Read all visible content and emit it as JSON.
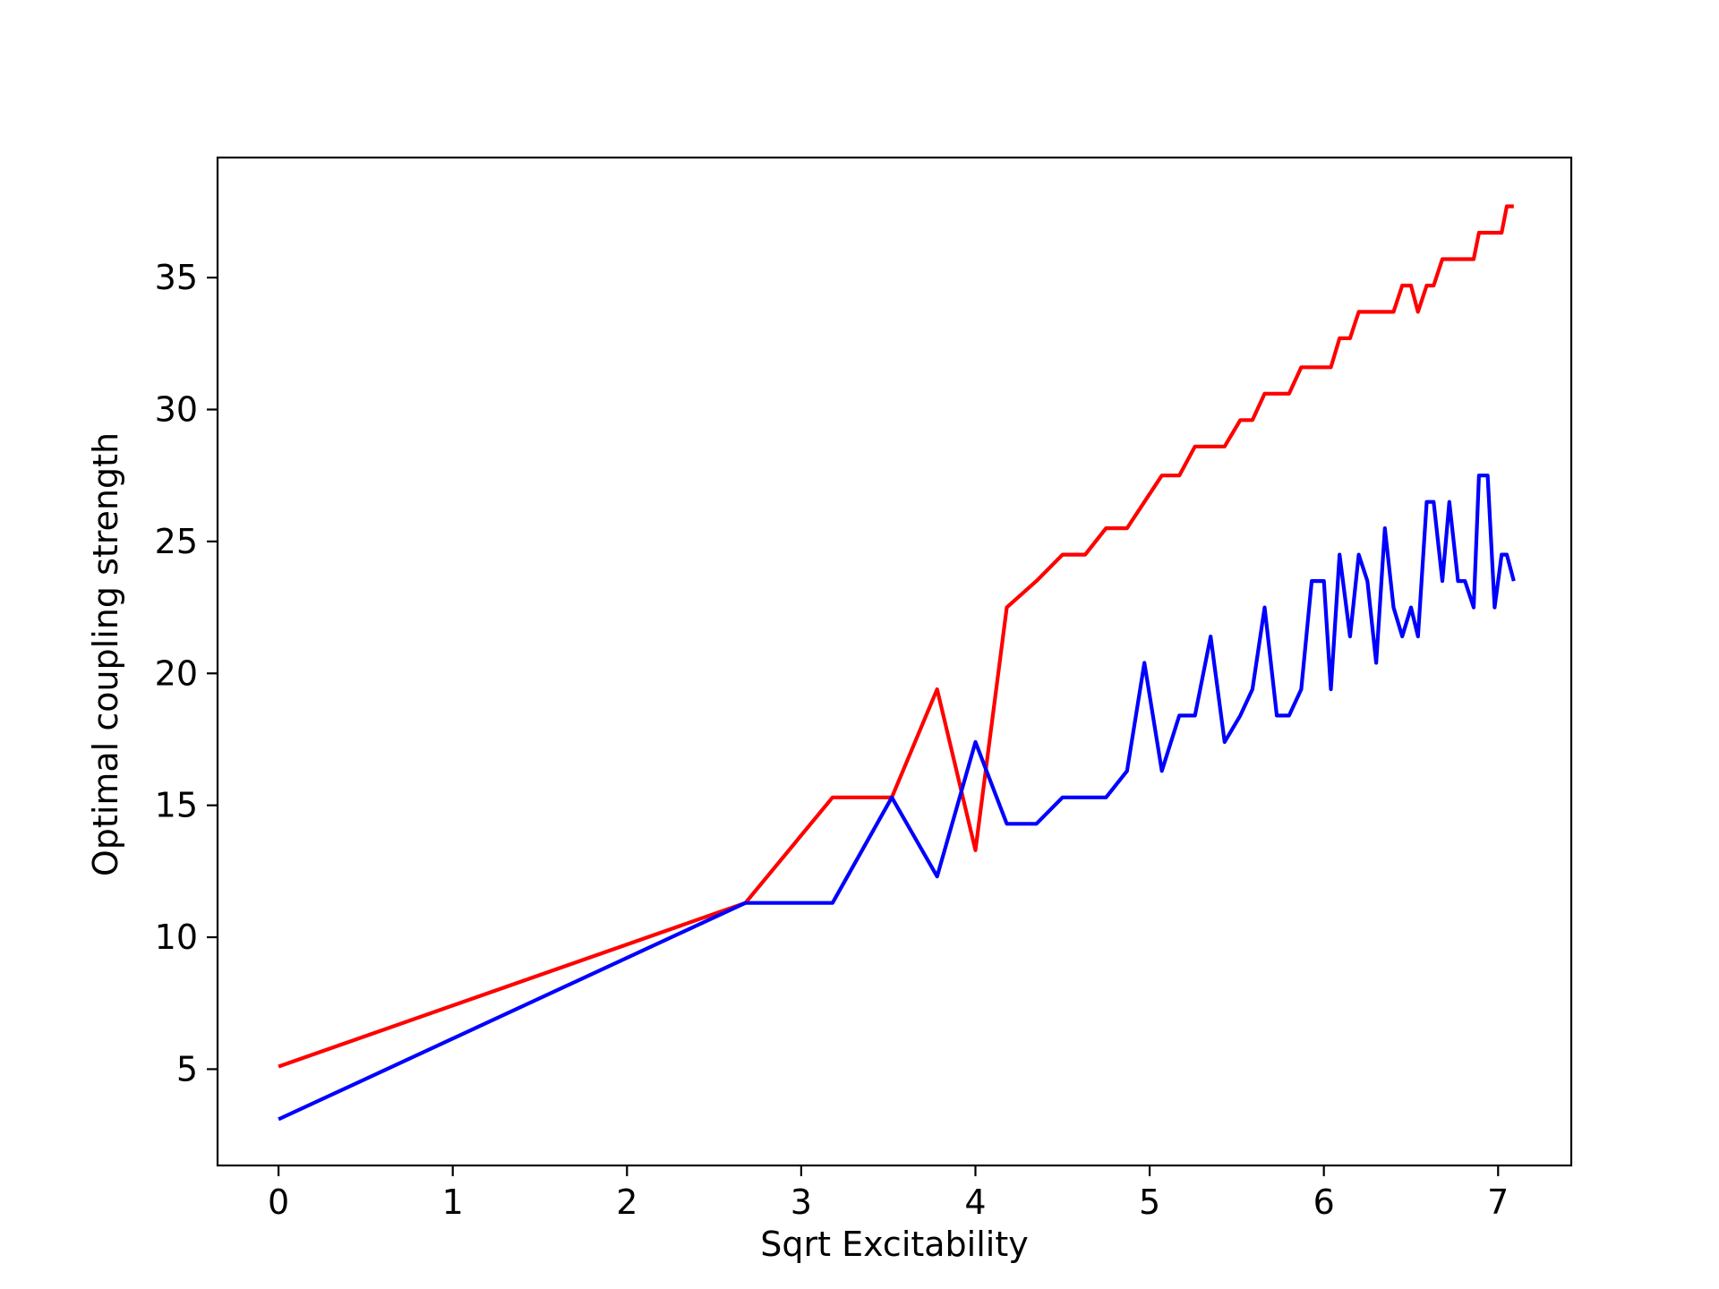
{
  "chart_data": {
    "type": "line",
    "title": "",
    "xlabel": "Sqrt Excitability",
    "ylabel": "Optimal coupling strength",
    "xlim": [
      -0.35,
      7.42
    ],
    "ylim": [
      1.35,
      39.55
    ],
    "xticks": [
      0,
      1,
      2,
      3,
      4,
      5,
      6,
      7
    ],
    "yticks": [
      5,
      10,
      15,
      20,
      25,
      30,
      35
    ],
    "grid": false,
    "legend": "none",
    "series": [
      {
        "color": "#ff0000",
        "points": [
          [
            0,
            5.1
          ],
          [
            2.68,
            11.3
          ],
          [
            3.18,
            15.3
          ],
          [
            3.52,
            15.3
          ],
          [
            3.78,
            19.4
          ],
          [
            4.0,
            13.3
          ],
          [
            4.18,
            22.5
          ],
          [
            4.35,
            23.5
          ],
          [
            4.5,
            24.5
          ],
          [
            4.63,
            24.5
          ],
          [
            4.75,
            25.5
          ],
          [
            4.87,
            25.5
          ],
          [
            4.97,
            26.5
          ],
          [
            5.07,
            27.5
          ],
          [
            5.17,
            27.5
          ],
          [
            5.26,
            28.6
          ],
          [
            5.35,
            28.6
          ],
          [
            5.43,
            28.6
          ],
          [
            5.52,
            29.6
          ],
          [
            5.59,
            29.6
          ],
          [
            5.66,
            30.6
          ],
          [
            5.73,
            30.6
          ],
          [
            5.8,
            30.6
          ],
          [
            5.87,
            31.6
          ],
          [
            5.93,
            31.6
          ],
          [
            6.0,
            31.6
          ],
          [
            6.04,
            31.6
          ],
          [
            6.09,
            32.7
          ],
          [
            6.15,
            32.7
          ],
          [
            6.2,
            33.7
          ],
          [
            6.25,
            33.7
          ],
          [
            6.3,
            33.7
          ],
          [
            6.35,
            33.7
          ],
          [
            6.4,
            33.7
          ],
          [
            6.45,
            34.7
          ],
          [
            6.5,
            34.7
          ],
          [
            6.54,
            33.7
          ],
          [
            6.59,
            34.7
          ],
          [
            6.63,
            34.7
          ],
          [
            6.68,
            35.7
          ],
          [
            6.72,
            35.7
          ],
          [
            6.77,
            35.7
          ],
          [
            6.81,
            35.7
          ],
          [
            6.86,
            35.7
          ],
          [
            6.89,
            36.7
          ],
          [
            6.94,
            36.7
          ],
          [
            6.98,
            36.7
          ],
          [
            7.02,
            36.7
          ],
          [
            7.05,
            37.7
          ],
          [
            7.09,
            37.7
          ]
        ]
      },
      {
        "color": "#0000ff",
        "points": [
          [
            0,
            3.1
          ],
          [
            2.68,
            11.3
          ],
          [
            3.18,
            11.3
          ],
          [
            3.52,
            15.3
          ],
          [
            3.78,
            12.3
          ],
          [
            4.0,
            17.4
          ],
          [
            4.18,
            14.3
          ],
          [
            4.35,
            14.3
          ],
          [
            4.5,
            15.3
          ],
          [
            4.63,
            15.3
          ],
          [
            4.75,
            15.3
          ],
          [
            4.87,
            16.3
          ],
          [
            4.97,
            20.4
          ],
          [
            5.07,
            16.3
          ],
          [
            5.17,
            18.4
          ],
          [
            5.26,
            18.4
          ],
          [
            5.35,
            21.4
          ],
          [
            5.43,
            17.4
          ],
          [
            5.52,
            18.4
          ],
          [
            5.59,
            19.4
          ],
          [
            5.66,
            22.5
          ],
          [
            5.73,
            18.4
          ],
          [
            5.8,
            18.4
          ],
          [
            5.87,
            19.4
          ],
          [
            5.93,
            23.5
          ],
          [
            6.0,
            23.5
          ],
          [
            6.04,
            19.4
          ],
          [
            6.09,
            24.5
          ],
          [
            6.15,
            21.4
          ],
          [
            6.2,
            24.5
          ],
          [
            6.25,
            23.5
          ],
          [
            6.3,
            20.4
          ],
          [
            6.35,
            25.5
          ],
          [
            6.4,
            22.5
          ],
          [
            6.45,
            21.4
          ],
          [
            6.5,
            22.5
          ],
          [
            6.54,
            21.4
          ],
          [
            6.59,
            26.5
          ],
          [
            6.63,
            26.5
          ],
          [
            6.68,
            23.5
          ],
          [
            6.72,
            26.5
          ],
          [
            6.77,
            23.5
          ],
          [
            6.81,
            23.5
          ],
          [
            6.86,
            22.5
          ],
          [
            6.89,
            27.5
          ],
          [
            6.94,
            27.5
          ],
          [
            6.98,
            22.5
          ],
          [
            7.02,
            24.5
          ],
          [
            7.05,
            24.5
          ],
          [
            7.09,
            23.5
          ]
        ]
      }
    ]
  }
}
